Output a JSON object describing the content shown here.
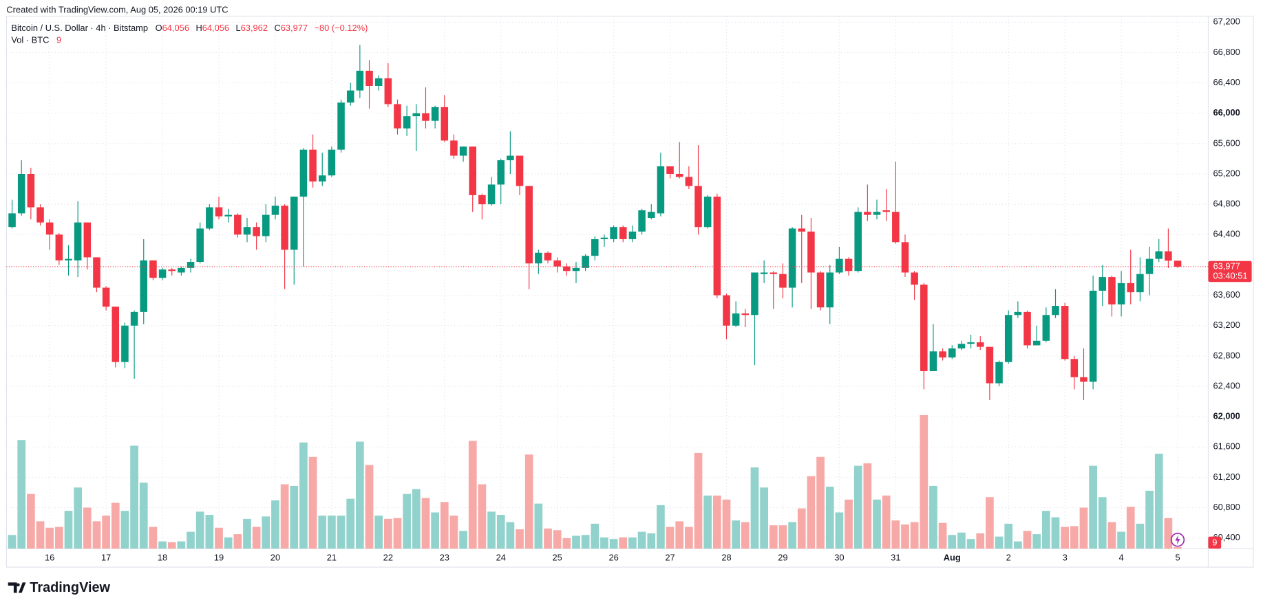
{
  "header": "Created with TradingView.com, Aug 05, 2026 00:19 UTC",
  "footer": {
    "brand": "TradingView"
  },
  "chart_data": {
    "type": "candlestick",
    "legend": {
      "symbol": "Bitcoin / U.S. Dollar · 4h · Bitstamp",
      "o": "O",
      "h": "H",
      "l": "L",
      "c": "C",
      "change": "−80 (−0.12%)",
      "volume_title": "Vol · BTC"
    },
    "last_labels": {
      "open": "64,056",
      "high": "64,056",
      "low": "63,962",
      "close": "63,977"
    },
    "countdown": "03:40:51",
    "up_color": "#089981",
    "down_color": "#f23645",
    "up_volume_color": "#92d2cc",
    "down_volume_color": "#f7a9a7",
    "ylim": [
      60260,
      67280
    ],
    "yticks": [
      {
        "value": 60400,
        "label": "60,400"
      },
      {
        "value": 60800,
        "label": "60,800"
      },
      {
        "value": 61200,
        "label": "61,200"
      },
      {
        "value": 61600,
        "label": "61,600"
      },
      {
        "value": 62000,
        "label": "62,000"
      },
      {
        "value": 62400,
        "label": "62,400"
      },
      {
        "value": 62800,
        "label": "62,800"
      },
      {
        "value": 63200,
        "label": "63,200"
      },
      {
        "value": 63600,
        "label": "63,600"
      },
      {
        "value": 64400,
        "label": "64,400"
      },
      {
        "value": 64800,
        "label": "64,800"
      },
      {
        "value": 65200,
        "label": "65,200"
      },
      {
        "value": 65600,
        "label": "65,600"
      },
      {
        "value": 66000,
        "label": "66,000"
      },
      {
        "value": 66400,
        "label": "66,400"
      },
      {
        "value": 66800,
        "label": "66,800"
      },
      {
        "value": 67200,
        "label": "67,200"
      }
    ],
    "xticks": [
      {
        "value": 4,
        "label": "16"
      },
      {
        "value": 10,
        "label": "17"
      },
      {
        "value": 16,
        "label": "18"
      },
      {
        "value": 22,
        "label": "19"
      },
      {
        "value": 28,
        "label": "20"
      },
      {
        "value": 34,
        "label": "21"
      },
      {
        "value": 40,
        "label": "22"
      },
      {
        "value": 46,
        "label": "23"
      },
      {
        "value": 52,
        "label": "24"
      },
      {
        "value": 58,
        "label": "25"
      },
      {
        "value": 64,
        "label": "26"
      },
      {
        "value": 70,
        "label": "27"
      },
      {
        "value": 76,
        "label": "28"
      },
      {
        "value": 82,
        "label": "29"
      },
      {
        "value": 88,
        "label": "30"
      },
      {
        "value": 94,
        "label": "31"
      },
      {
        "value": 100,
        "label": "Aug"
      },
      {
        "value": 106,
        "label": "2"
      },
      {
        "value": 112,
        "label": "3"
      },
      {
        "value": 118,
        "label": "4"
      },
      {
        "value": 124,
        "label": "5"
      }
    ],
    "open": [
      64500,
      64680,
      65200,
      64760,
      64560,
      64400,
      64060,
      64060,
      64560,
      64100,
      63700,
      63450,
      62720,
      63200,
      63380,
      64060,
      63830,
      63940,
      63900,
      63960,
      64040,
      64480,
      64760,
      64640,
      64660,
      64400,
      64500,
      64380,
      64660,
      64780,
      64200,
      64900,
      65520,
      65100,
      65180,
      65520,
      66140,
      66300,
      66560,
      66360,
      66460,
      66120,
      65800,
      65960,
      66000,
      65900,
      66080,
      65640,
      65440,
      65560,
      64920,
      64800,
      65060,
      65380,
      65440,
      65040,
      64020,
      64160,
      64060,
      63980,
      63920,
      63960,
      64120,
      64340,
      64340,
      64500,
      64340,
      64440,
      64620,
      64680,
      65300,
      65200,
      65160,
      65040,
      64500,
      64900,
      63600,
      63200,
      63360,
      63340,
      63880,
      63900,
      63880,
      63700,
      64480,
      64440,
      63900,
      63440,
      63900,
      64080,
      63920,
      64700,
      64660,
      64720,
      64700,
      64300,
      63900,
      63740,
      62600,
      62860,
      62780,
      62900,
      62960,
      62980,
      62920,
      62440,
      62720,
      63340,
      63380,
      62940,
      63000,
      63340,
      63460,
      62760,
      62520,
      62460,
      63660,
      63840,
      63480,
      63760,
      63640,
      63880,
      64080,
      64180,
      64056
    ],
    "high": [
      64860,
      65380,
      65280,
      64800,
      64600,
      64420,
      64260,
      64840,
      64560,
      64100,
      63720,
      63450,
      63240,
      63400,
      64340,
      64060,
      63960,
      63960,
      63980,
      64080,
      64560,
      64800,
      64900,
      64740,
      64680,
      64620,
      64560,
      64800,
      64900,
      64800,
      64900,
      65540,
      65720,
      65480,
      65560,
      66180,
      66400,
      66900,
      66700,
      66500,
      66660,
      66180,
      66100,
      66120,
      66340,
      66100,
      66240,
      65720,
      65560,
      65560,
      64940,
      65160,
      65400,
      65760,
      65440,
      65040,
      64200,
      64180,
      64100,
      64020,
      64040,
      64140,
      64380,
      64400,
      64520,
      64520,
      64520,
      64740,
      64800,
      65480,
      65300,
      65620,
      65300,
      65580,
      64920,
      64940,
      63620,
      63520,
      63420,
      63900,
      64060,
      63920,
      64020,
      64500,
      64660,
      64620,
      63920,
      64000,
      64240,
      64100,
      64760,
      65060,
      64860,
      65000,
      65360,
      64400,
      63920,
      63760,
      63220,
      62900,
      62940,
      63000,
      63080,
      63060,
      62920,
      62740,
      63400,
      63520,
      63400,
      63200,
      63440,
      63680,
      63500,
      62800,
      62900,
      63860,
      64000,
      63860,
      63920,
      64200,
      64100,
      64240,
      64340,
      64480,
      64056
    ],
    "low": [
      64480,
      64650,
      64600,
      64520,
      64200,
      64000,
      63860,
      63840,
      63940,
      63640,
      63400,
      62650,
      62640,
      62500,
      63220,
      63800,
      63800,
      63860,
      63860,
      63900,
      64020,
      64460,
      64600,
      64560,
      64360,
      64300,
      64200,
      64300,
      64600,
      63680,
      63740,
      63980,
      65020,
      65040,
      65160,
      65480,
      66100,
      66200,
      66060,
      66300,
      66080,
      65720,
      65700,
      65500,
      65800,
      65800,
      65620,
      65400,
      65360,
      64700,
      64600,
      64780,
      64800,
      65200,
      64920,
      63680,
      63880,
      64020,
      63900,
      63860,
      63760,
      63920,
      64060,
      64240,
      64300,
      64300,
      64300,
      64400,
      64600,
      64640,
      65140,
      65140,
      65000,
      64400,
      64480,
      63560,
      63020,
      63180,
      63180,
      62680,
      63760,
      63420,
      63560,
      63440,
      63760,
      63420,
      63400,
      63220,
      63880,
      63860,
      63900,
      64580,
      64600,
      64580,
      64280,
      63840,
      63540,
      62360,
      62600,
      62740,
      62760,
      62880,
      62900,
      62880,
      62220,
      62400,
      62700,
      63300,
      62900,
      62940,
      62980,
      63300,
      62740,
      62360,
      62220,
      62360,
      63460,
      63320,
      63320,
      63480,
      63520,
      63600,
      64040,
      63960,
      63962
    ],
    "close": [
      64680,
      65200,
      64760,
      64560,
      64400,
      64060,
      64080,
      64560,
      64100,
      63700,
      63450,
      62720,
      63200,
      63380,
      64060,
      63830,
      63940,
      63920,
      63960,
      64040,
      64480,
      64760,
      64640,
      64660,
      64400,
      64500,
      64380,
      64660,
      64780,
      64200,
      64900,
      65520,
      65100,
      65180,
      65520,
      66140,
      66300,
      66560,
      66360,
      66460,
      66120,
      65800,
      65960,
      66000,
      65900,
      66080,
      65640,
      65440,
      65560,
      64920,
      64800,
      65060,
      65380,
      65440,
      65040,
      64020,
      64160,
      64060,
      63980,
      63920,
      63960,
      64120,
      64340,
      64360,
      64500,
      64340,
      64440,
      64720,
      64700,
      65300,
      65200,
      65160,
      65040,
      64500,
      64900,
      63600,
      63200,
      63360,
      63340,
      63900,
      63900,
      63880,
      63700,
      64480,
      64440,
      63900,
      63440,
      63900,
      64080,
      63920,
      64700,
      64660,
      64700,
      64700,
      64300,
      63900,
      63740,
      62600,
      62860,
      62780,
      62900,
      62960,
      62980,
      62920,
      62440,
      62720,
      63340,
      63380,
      62940,
      63000,
      63340,
      63460,
      62760,
      62520,
      62460,
      63660,
      63840,
      63480,
      63760,
      63640,
      63880,
      64080,
      64180,
      64056,
      63977
    ],
    "volume": [
      85,
      675,
      340,
      170,
      130,
      135,
      235,
      380,
      255,
      170,
      205,
      285,
      235,
      640,
      410,
      135,
      45,
      40,
      45,
      105,
      230,
      210,
      130,
      70,
      90,
      185,
      135,
      200,
      300,
      400,
      390,
      660,
      570,
      205,
      205,
      205,
      310,
      665,
      520,
      205,
      185,
      190,
      340,
      370,
      315,
      225,
      290,
      205,
      110,
      670,
      400,
      230,
      210,
      165,
      120,
      585,
      280,
      125,
      115,
      65,
      80,
      85,
      155,
      70,
      60,
      70,
      70,
      105,
      95,
      270,
      135,
      170,
      135,
      595,
      330,
      330,
      305,
      175,
      165,
      505,
      380,
      145,
      145,
      165,
      250,
      450,
      570,
      385,
      225,
      305,
      515,
      530,
      305,
      330,
      175,
      150,
      165,
      830,
      390,
      160,
      85,
      100,
      60,
      95,
      320,
      75,
      155,
      45,
      110,
      90,
      235,
      195,
      135,
      140,
      255,
      515,
      320,
      165,
      105,
      260,
      155,
      360,
      590,
      190,
      9
    ]
  }
}
